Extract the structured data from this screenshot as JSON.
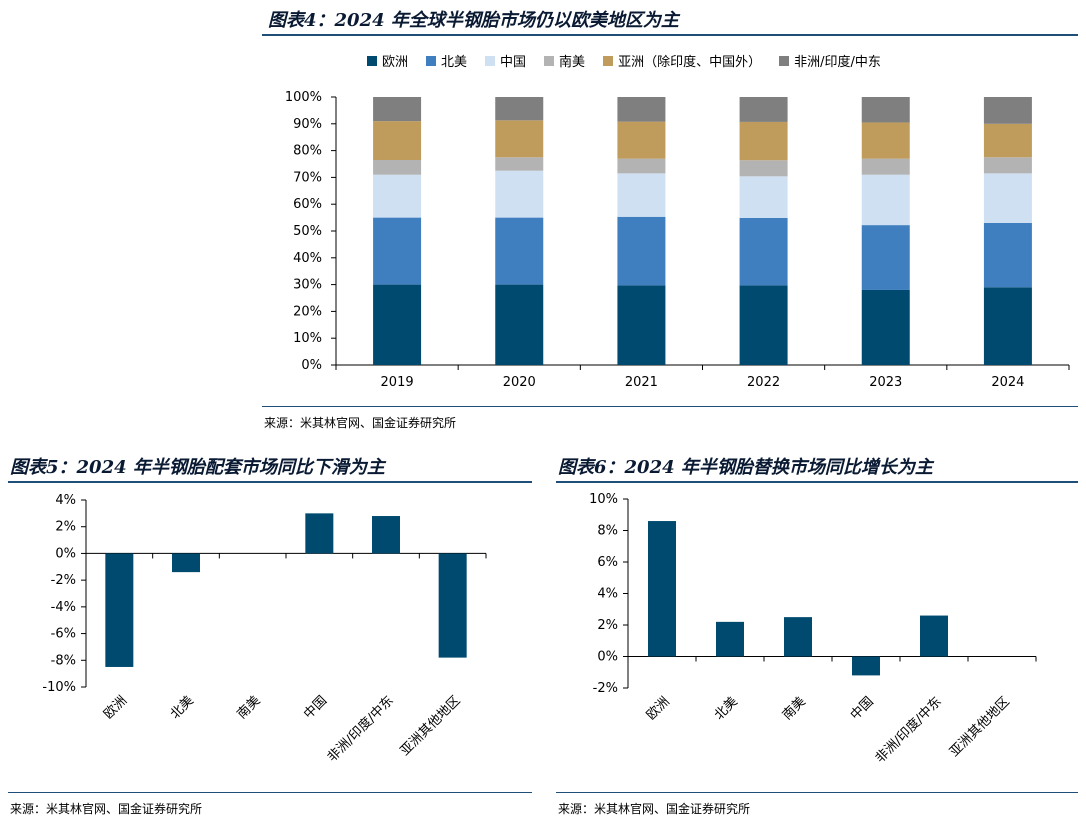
{
  "chart_data": [
    {
      "type": "bar",
      "stacked": true,
      "title": "图表4：2024 年全球半钢胎市场仍以欧美地区为主",
      "categories": [
        "2019",
        "2020",
        "2021",
        "2022",
        "2023",
        "2024"
      ],
      "series": [
        {
          "name": "欧洲",
          "color": "#004a70",
          "values": [
            30,
            30,
            29.7,
            29.7,
            28,
            29
          ]
        },
        {
          "name": "北美",
          "color": "#3f7fbf",
          "values": [
            25,
            25,
            25.6,
            25.2,
            24.2,
            24
          ]
        },
        {
          "name": "中国",
          "color": "#cfe0f2",
          "values": [
            16,
            17.5,
            16.2,
            15.5,
            18.8,
            18.5
          ]
        },
        {
          "name": "南美",
          "color": "#b3b3b3",
          "values": [
            5.5,
            5,
            5.5,
            6,
            6,
            6
          ]
        },
        {
          "name": "亚洲（除印度、中国外）",
          "color": "#bf9b5c",
          "values": [
            14.5,
            13.8,
            13.8,
            14.3,
            13.5,
            12.5
          ]
        },
        {
          "name": "非洲/印度/中东",
          "color": "#7f7f7f",
          "values": [
            9,
            8.7,
            9.2,
            9.3,
            9.5,
            10
          ]
        }
      ],
      "ylim": [
        0,
        100
      ],
      "yticks": [
        "0%",
        "10%",
        "20%",
        "30%",
        "40%",
        "50%",
        "60%",
        "70%",
        "80%",
        "90%",
        "100%"
      ],
      "legend": "top",
      "source": "来源：米其林官网、国金证券研究所"
    },
    {
      "type": "bar",
      "title": "图表5：2024 年半钢胎配套市场同比下滑为主",
      "categories": [
        "欧洲",
        "北美",
        "南美",
        "中国",
        "非洲/印度/中东",
        "亚洲其他地区"
      ],
      "values": [
        -8.5,
        -1.4,
        0,
        3.0,
        2.8,
        -7.8
      ],
      "color": "#004a70",
      "ylim": [
        -10,
        4
      ],
      "yticks": [
        "-10%",
        "-8%",
        "-6%",
        "-4%",
        "-2%",
        "0%",
        "2%",
        "4%"
      ],
      "source": "来源：米其林官网、国金证券研究所"
    },
    {
      "type": "bar",
      "title": "图表6：2024 年半钢胎替换市场同比增长为主",
      "categories": [
        "欧洲",
        "北美",
        "南美",
        "中国",
        "非洲/印度/中东",
        "亚洲其他地区"
      ],
      "values": [
        8.6,
        2.2,
        2.5,
        -1.2,
        2.6,
        0
      ],
      "color": "#004a70",
      "ylim": [
        -2,
        10
      ],
      "yticks": [
        "-2%",
        "0%",
        "2%",
        "4%",
        "6%",
        "8%",
        "10%"
      ],
      "source": "来源：米其林官网、国金证券研究所"
    }
  ]
}
